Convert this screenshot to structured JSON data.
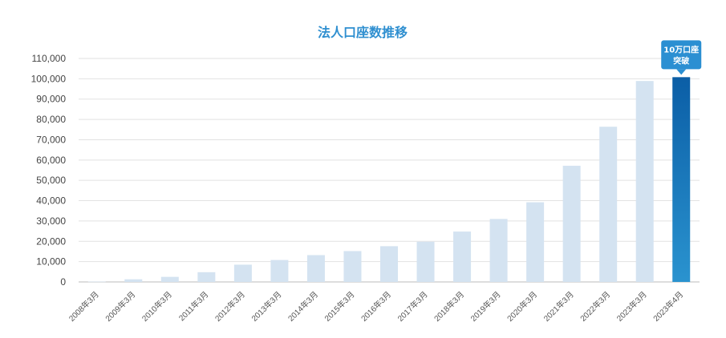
{
  "chart_data": {
    "type": "bar",
    "title": "法人口座数推移",
    "categories": [
      "2008年3月",
      "2009年3月",
      "2010年3月",
      "2011年3月",
      "2012年3月",
      "2013年3月",
      "2014年3月",
      "2015年3月",
      "2016年3月",
      "2017年3月",
      "2018年3月",
      "2019年3月",
      "2020年3月",
      "2021年3月",
      "2022年3月",
      "2023年3月",
      "2023年4月"
    ],
    "values": [
      150,
      1300,
      2500,
      4800,
      8500,
      10800,
      13200,
      15200,
      17600,
      19800,
      24800,
      31000,
      39200,
      57200,
      76400,
      98900,
      100800
    ],
    "ylim": [
      0,
      110000
    ],
    "yticks": [
      "0",
      "10,000",
      "20,000",
      "30,000",
      "40,000",
      "50,000",
      "60,000",
      "70,000",
      "80,000",
      "90,000",
      "100,000",
      "110,000"
    ],
    "xlabel": "",
    "ylabel": "",
    "grid": true,
    "highlight_index": 16,
    "annotation": {
      "line1": "10万口座",
      "line2": "突破"
    }
  },
  "colors": {
    "title": "#2f8fd0",
    "bar": "#d4e3f1",
    "highlight_top": "#0b5ea6",
    "highlight_bottom": "#2a93cf",
    "callout": "#2b8fd2",
    "grid": "#e2e2e2",
    "axis": "#bbbbbb"
  }
}
